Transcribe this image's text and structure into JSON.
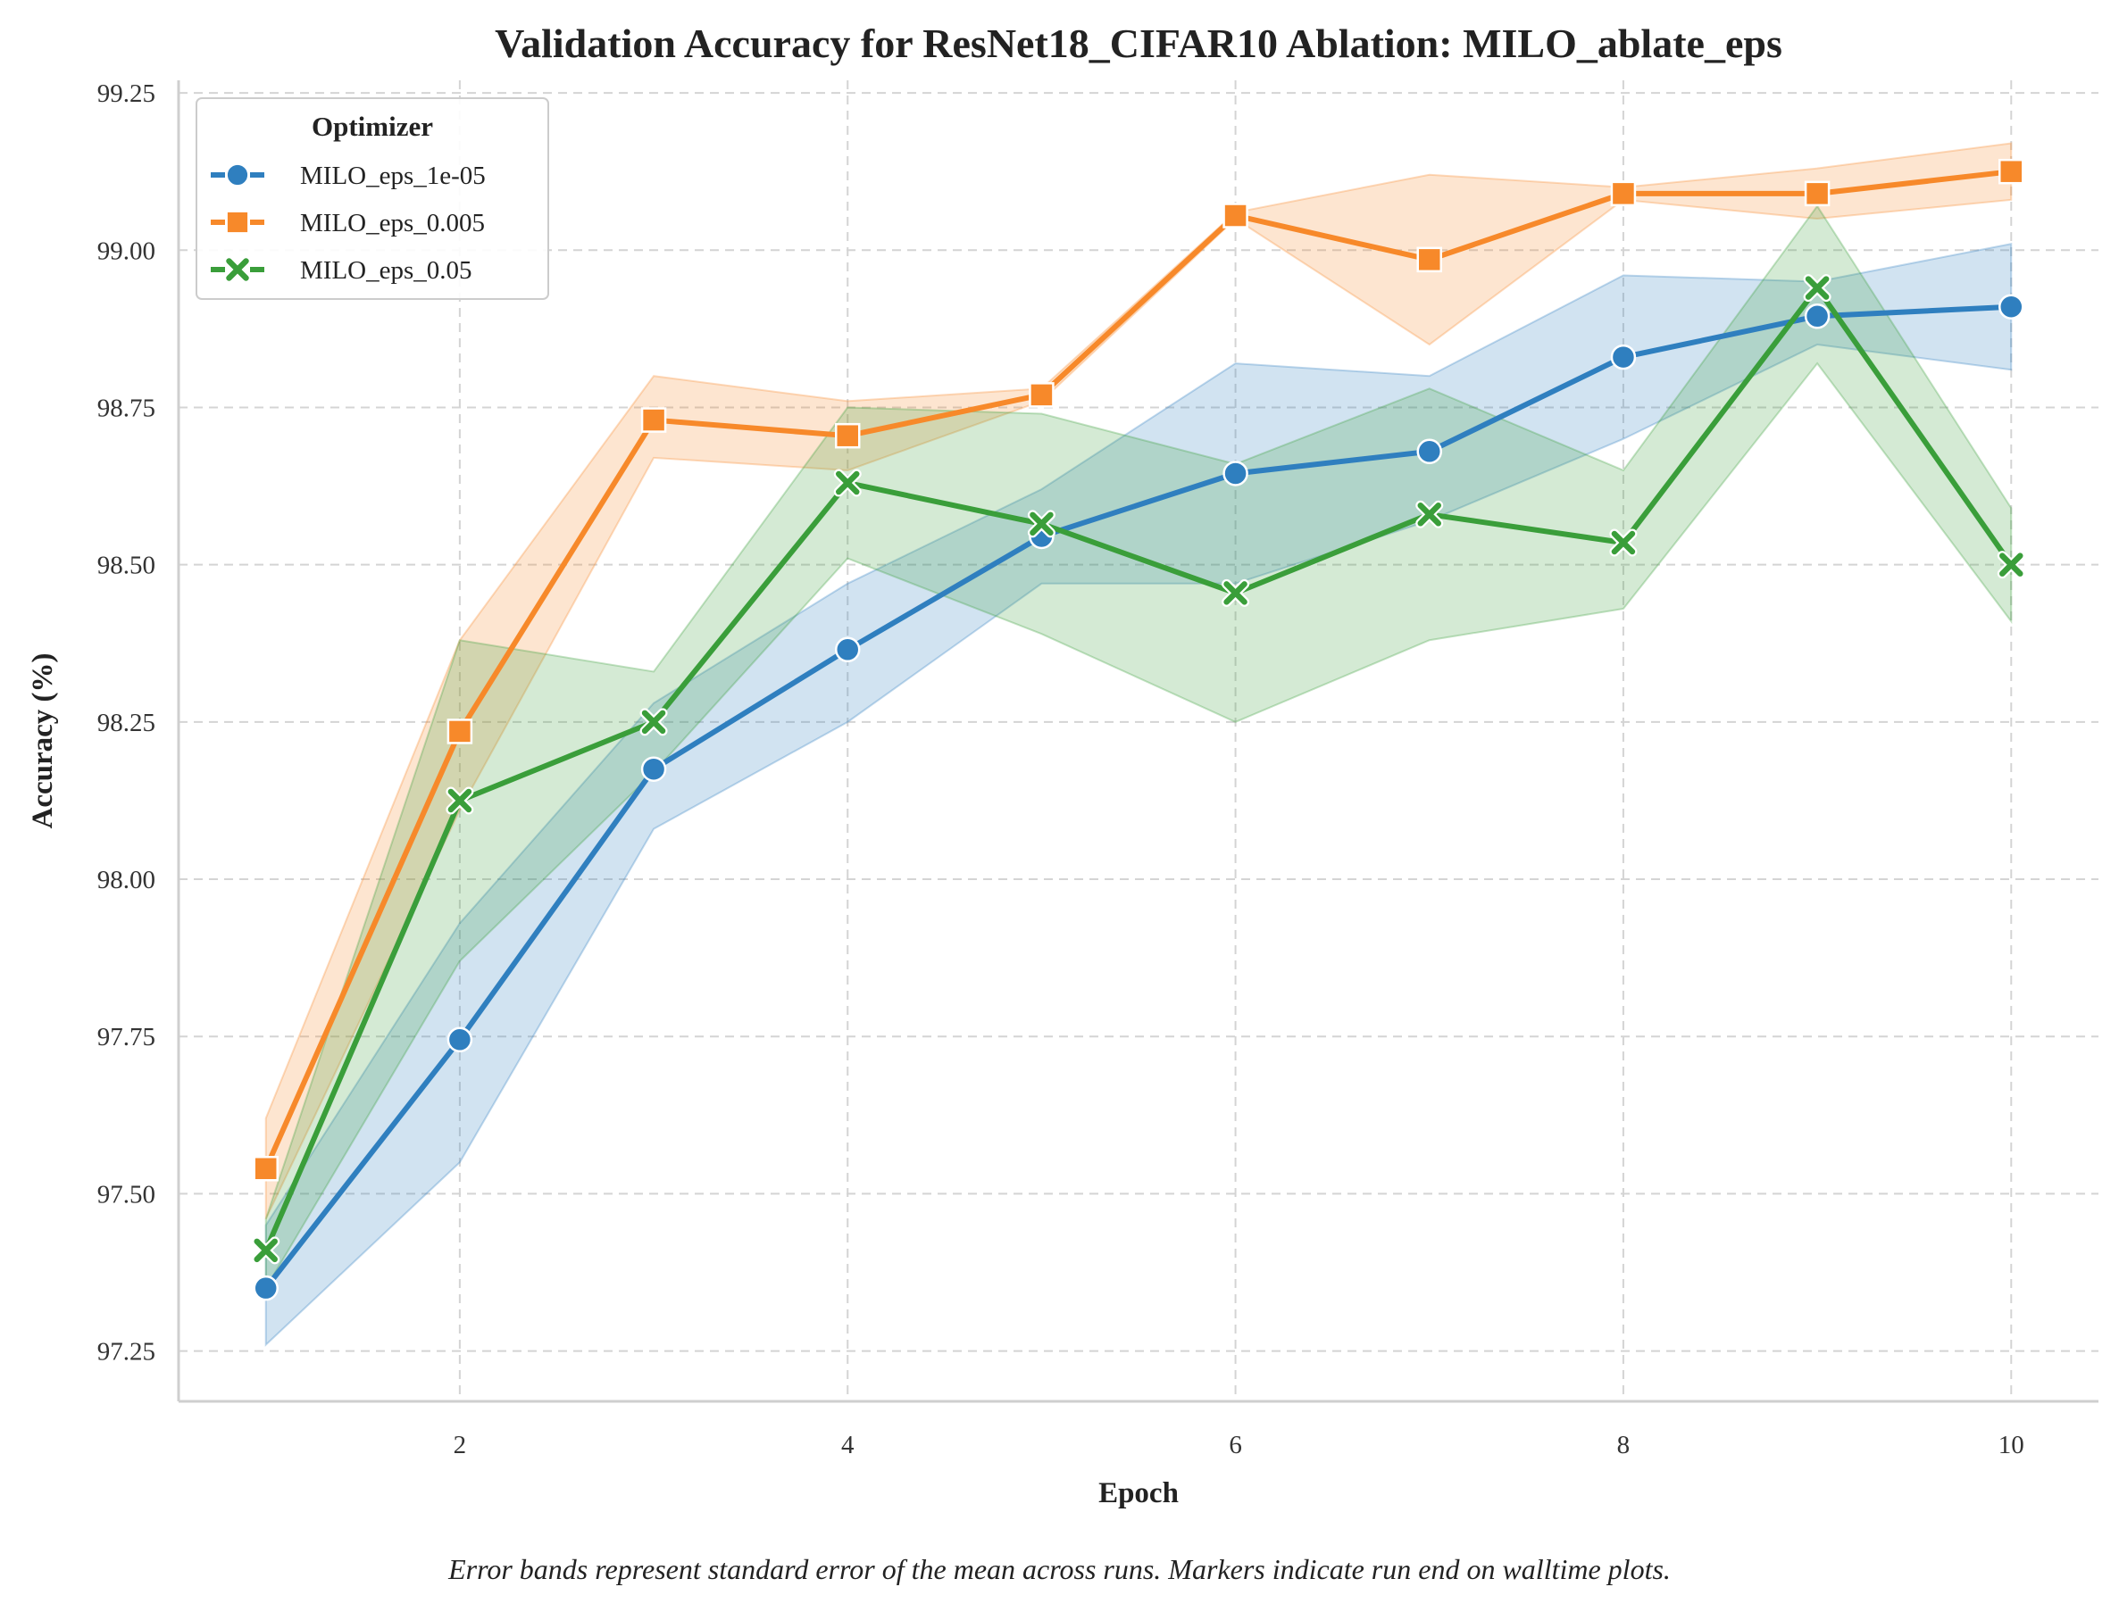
{
  "chart_data": {
    "type": "line",
    "title": "Validation Accuracy for ResNet18_CIFAR10 Ablation: MILO_ablate_eps",
    "xlabel": "Epoch",
    "ylabel": "Accuracy (%)",
    "xlim": [
      0.55,
      10.45
    ],
    "ylim": [
      97.17,
      99.27
    ],
    "xticks": [
      2,
      4,
      6,
      8,
      10
    ],
    "yticks": [
      97.25,
      97.5,
      97.75,
      98.0,
      98.25,
      98.5,
      98.75,
      99.0,
      99.25
    ],
    "ytick_labels": [
      "97.25",
      "97.50",
      "97.75",
      "98.00",
      "98.25",
      "98.50",
      "98.75",
      "99.00",
      "99.25"
    ],
    "grid": true,
    "legend": {
      "title": "Optimizer",
      "position": "top-left"
    },
    "x": [
      1,
      2,
      3,
      4,
      5,
      6,
      7,
      8,
      9,
      10
    ],
    "series": [
      {
        "name": "MILO_eps_1e-05",
        "color": "#2f7fbf",
        "marker": "circle",
        "values": [
          97.35,
          97.745,
          98.175,
          98.365,
          98.545,
          98.645,
          98.68,
          98.83,
          98.895,
          98.91
        ],
        "band_lower": [
          97.26,
          97.55,
          98.08,
          98.25,
          98.47,
          98.47,
          98.57,
          98.7,
          98.85,
          98.81
        ],
        "band_upper": [
          97.45,
          97.93,
          98.28,
          98.47,
          98.62,
          98.82,
          98.8,
          98.96,
          98.95,
          99.01
        ]
      },
      {
        "name": "MILO_eps_0.005",
        "color": "#f7892a",
        "marker": "square",
        "values": [
          97.54,
          98.235,
          98.73,
          98.705,
          98.77,
          99.055,
          98.985,
          99.09,
          99.09,
          99.125
        ],
        "band_lower": [
          97.46,
          98.11,
          98.67,
          98.65,
          98.76,
          99.05,
          98.85,
          99.08,
          99.05,
          99.08
        ],
        "band_upper": [
          97.62,
          98.38,
          98.8,
          98.76,
          98.78,
          99.06,
          99.12,
          99.1,
          99.13,
          99.17
        ]
      },
      {
        "name": "MILO_eps_0.05",
        "color": "#3a9e3a",
        "marker": "x",
        "values": [
          97.41,
          98.125,
          98.25,
          98.63,
          98.565,
          98.455,
          98.58,
          98.535,
          98.94,
          98.5
        ],
        "band_lower": [
          97.35,
          97.87,
          98.17,
          98.51,
          98.39,
          98.25,
          98.38,
          98.43,
          98.82,
          98.41
        ],
        "band_upper": [
          97.46,
          98.38,
          98.33,
          98.75,
          98.74,
          98.66,
          98.78,
          98.65,
          99.07,
          98.59
        ]
      }
    ]
  },
  "caption": "Error bands represent standard error of the mean across runs. Markers indicate run end on walltime plots."
}
